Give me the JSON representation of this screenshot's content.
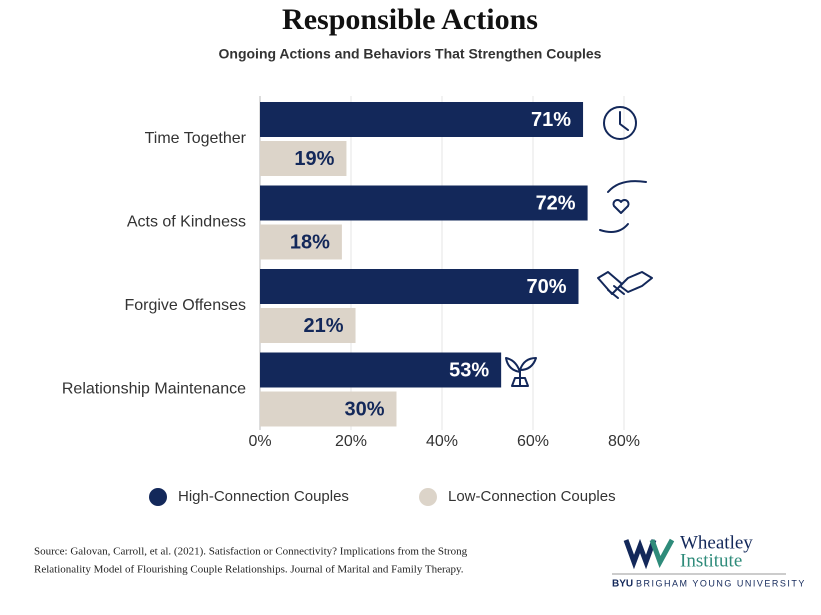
{
  "chart_data": {
    "type": "hbar",
    "title": "Responsible Actions",
    "subtitle": "Ongoing Actions and Behaviors That Strengthen Couples",
    "categories": [
      "Time Together",
      "Acts of Kindness",
      "Forgive Offenses",
      "Relationship Maintenance"
    ],
    "series": [
      {
        "name": "High-Connection Couples",
        "color": "#13285a",
        "label_color": "#ffffff",
        "values": [
          71,
          72,
          70,
          53
        ],
        "value_labels": [
          "71%",
          "72%",
          "70%",
          "53%"
        ]
      },
      {
        "name": "Low-Connection Couples",
        "color": "#dcd4c9",
        "label_color": "#13285a",
        "values": [
          19,
          18,
          21,
          30
        ],
        "value_labels": [
          "19%",
          "18%",
          "21%",
          "30%"
        ]
      }
    ],
    "xlim": [
      0,
      80
    ],
    "xticks": [
      {
        "value": 0,
        "label": "0%"
      },
      {
        "value": 20,
        "label": "20%"
      },
      {
        "value": 40,
        "label": "40%"
      },
      {
        "value": 60,
        "label": "60%"
      },
      {
        "value": 80,
        "label": "80%"
      }
    ],
    "grid": true
  },
  "footer": {
    "source": [
      "Source: Galovan, Carroll, et al. (2021). Satisfaction or Connectivity? Implications from the Strong",
      "Relationality Model of Flourishing Couple Relationships. Journal of Marital and Family Therapy."
    ],
    "logo_name": "Wheatley",
    "logo_sub": "Institute",
    "logo_byu": "BYU",
    "logo_university": "BRIGHAM YOUNG UNIVERSITY"
  }
}
